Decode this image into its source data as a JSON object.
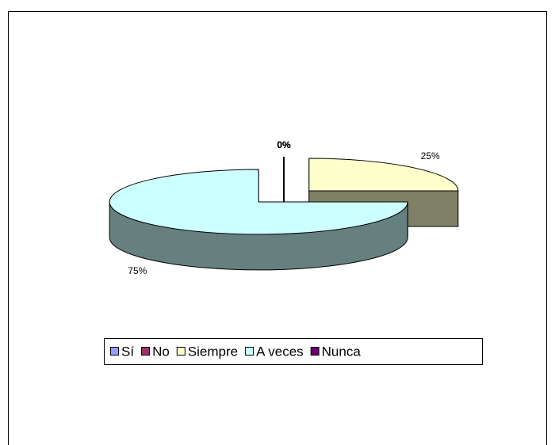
{
  "chart_data": {
    "type": "pie3d",
    "categories": [
      "Sí",
      "No",
      "Siempre",
      "A veces",
      "Nunca"
    ],
    "values": [
      0,
      0,
      25,
      75,
      0
    ],
    "value_labels": [
      "0%",
      "0%",
      "25%",
      "75%",
      "0%"
    ],
    "colors": [
      "#9999ff",
      "#993366",
      "#ffffcc",
      "#ccffff",
      "#660066"
    ],
    "legend": "bottom"
  }
}
